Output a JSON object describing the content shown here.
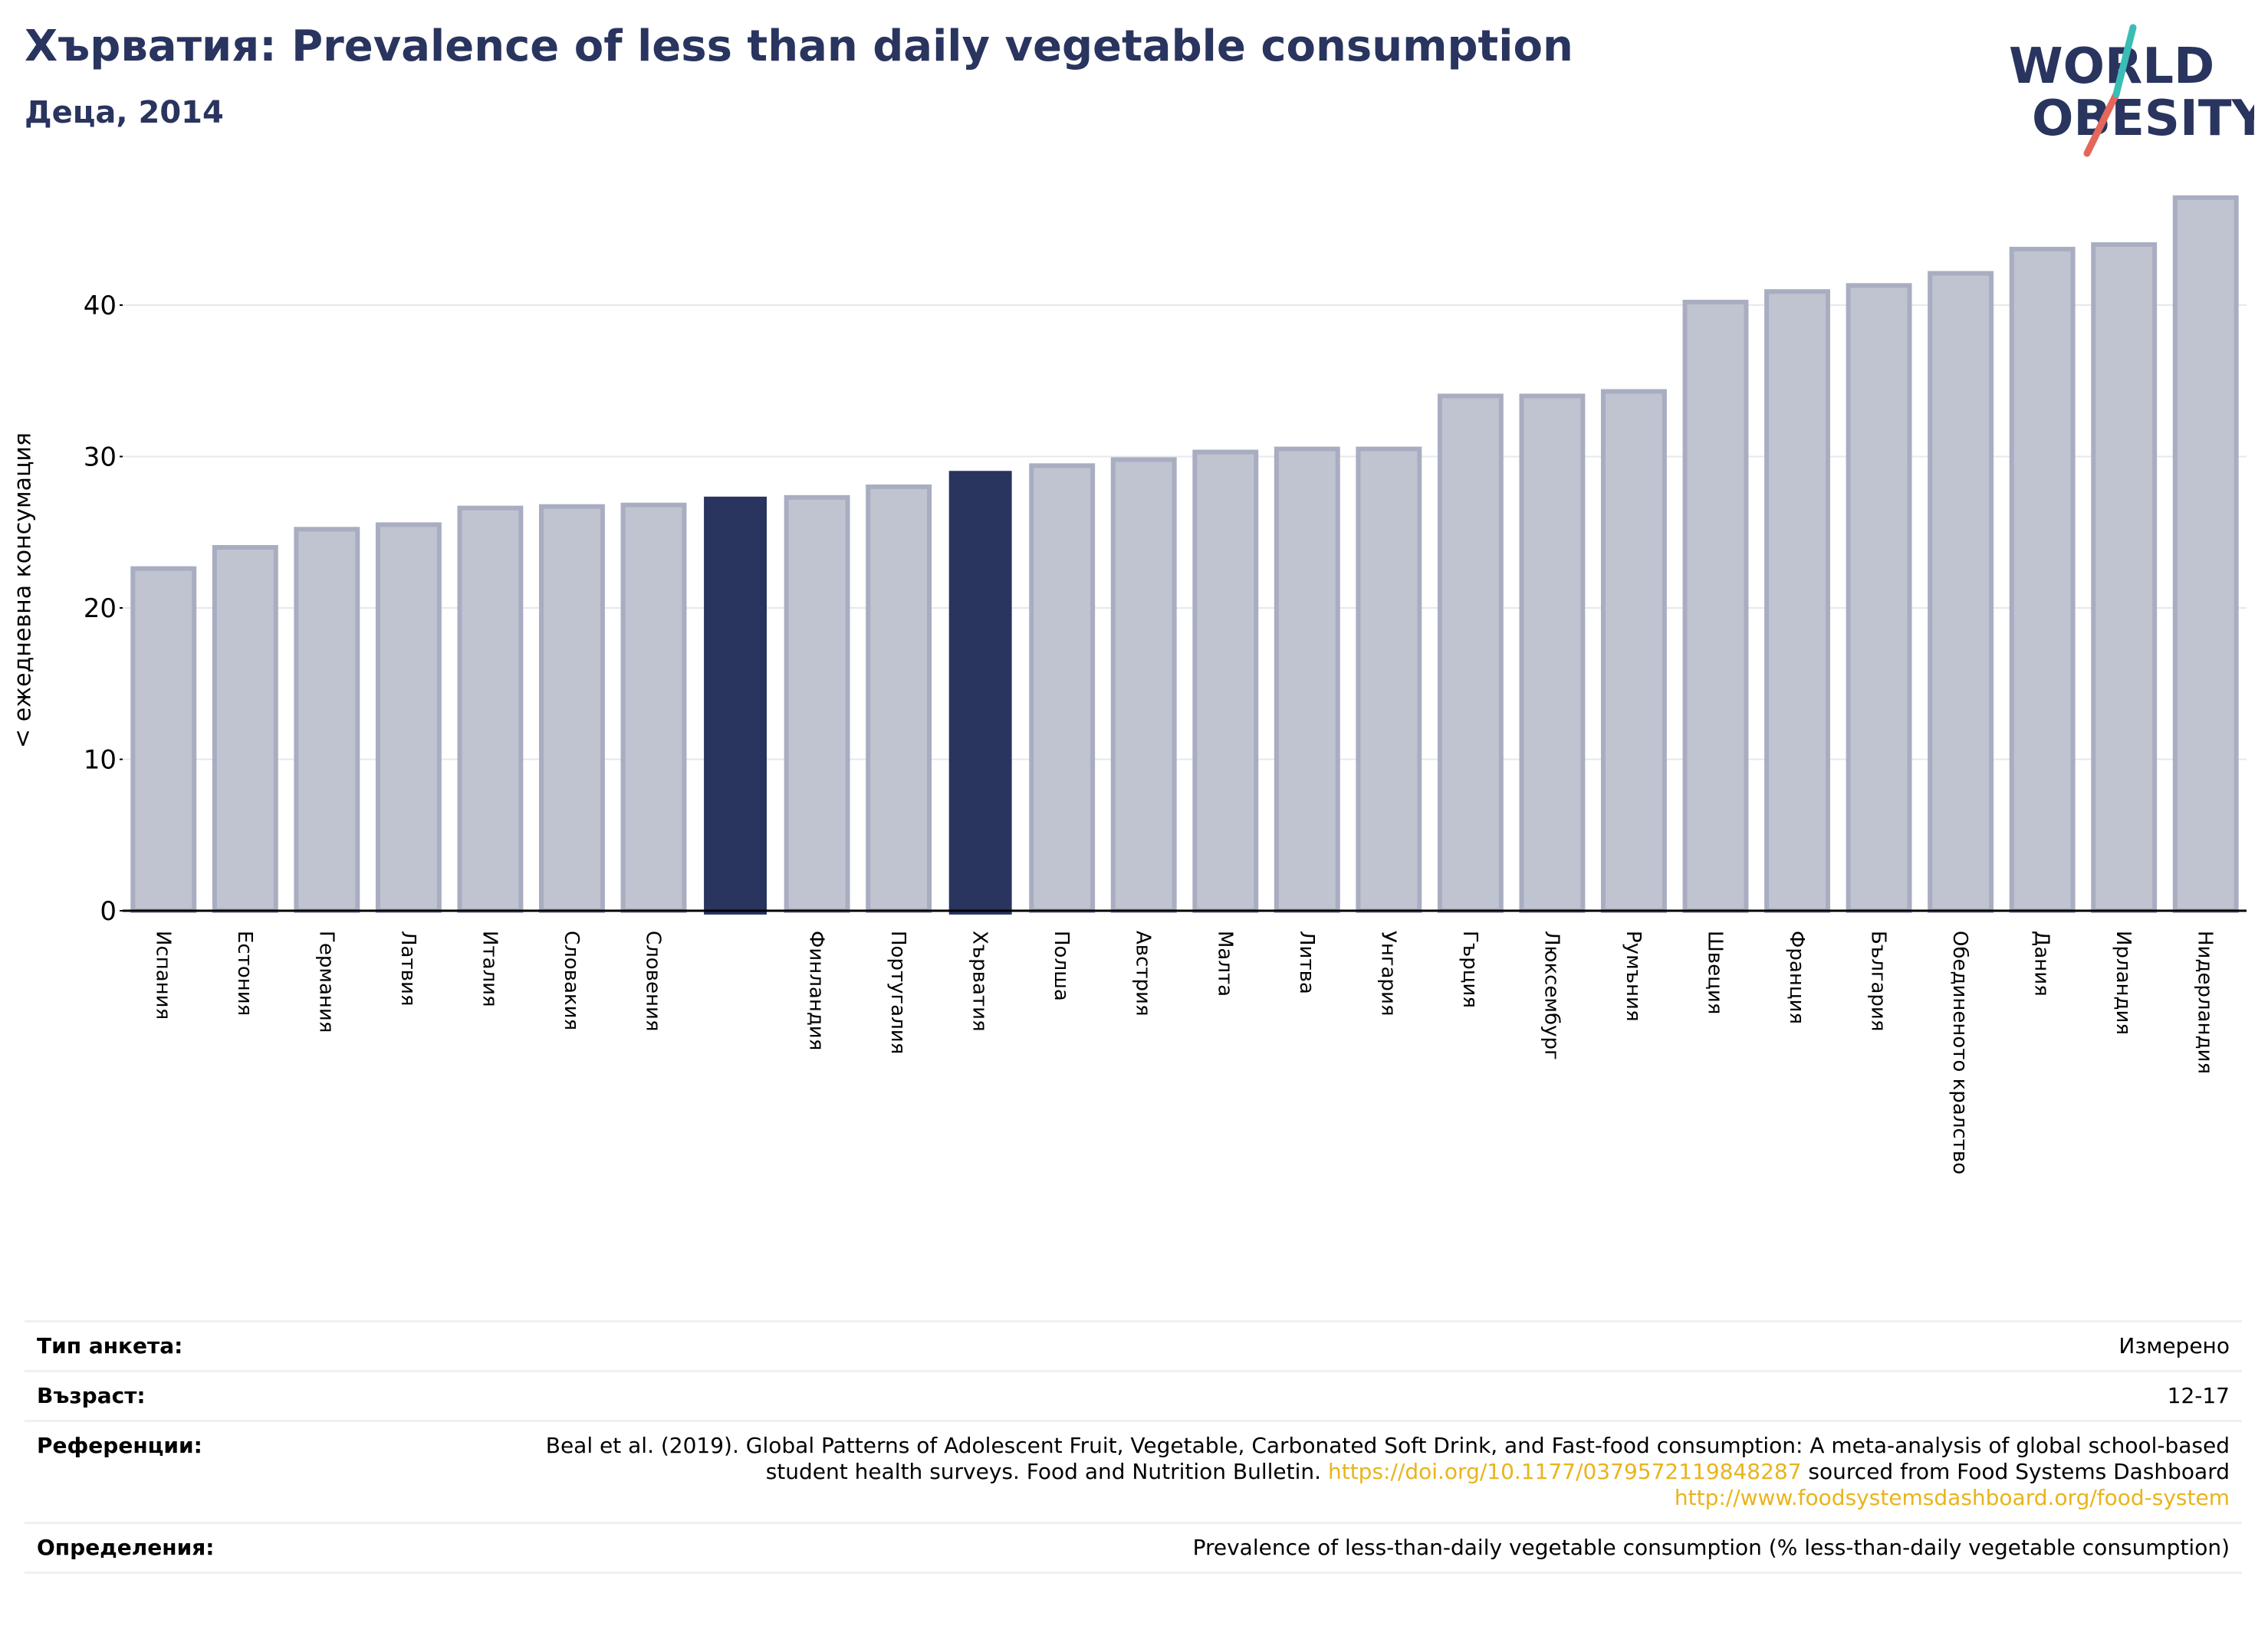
{
  "header": {
    "title": "Хърватия: Prevalence of less than daily vegetable consumption",
    "subtitle": "Деца, 2014",
    "logo_line1": "WORLD",
    "logo_line2": "OBESITY"
  },
  "chart_data": {
    "type": "bar",
    "ylabel": "< ежедневна консумация",
    "ylim": [
      0,
      48
    ],
    "yticks": [
      0,
      10,
      20,
      30,
      40
    ],
    "grid": true,
    "categories": [
      "Испания",
      "Естония",
      "Германия",
      "Латвия",
      "Италия",
      "Словакия",
      "Словения",
      "",
      "Финландия",
      "Португалия",
      "Хърватия",
      "Полша",
      "Австрия",
      "Малта",
      "Литва",
      "Унгария",
      "Гърция",
      "Люксембург",
      "Румъния",
      "Швеция",
      "Франция",
      "България",
      "Обединеното кралство",
      "Дания",
      "Ирландия",
      "Нидерландия"
    ],
    "values": [
      22.6,
      24.0,
      25.2,
      25.5,
      26.6,
      26.7,
      26.8,
      27.3,
      27.3,
      28.0,
      29.0,
      29.4,
      29.8,
      30.3,
      30.5,
      30.5,
      34.0,
      34.0,
      34.3,
      40.2,
      40.9,
      41.3,
      42.1,
      43.7,
      44.0,
      47.1
    ],
    "highlight": [
      7,
      10
    ],
    "colors": {
      "bar": "#c0c3d0",
      "bar_edge": "#a9adc1",
      "highlight": "#29345f",
      "grid": "#e6e8ee",
      "axis": "#000000"
    }
  },
  "meta": {
    "survey_type_label": "Тип анкета:",
    "survey_type_value": "Измерено",
    "age_label": "Възраст:",
    "age_value": "12-17",
    "references_label": "Референции:",
    "references_text_1": "Beal et al. (2019). Global Patterns of Adolescent Fruit, Vegetable, Carbonated Soft Drink, and Fast-food consumption: A meta-analysis of global school-based student health surveys. Food and Nutrition Bulletin. ",
    "references_link_1": "https://doi.org/10.1177/0379572119848287",
    "references_text_2": " sourced from Food Systems Dashboard ",
    "references_link_2": "http://www.foodsystemsdashboard.org/food-system",
    "definitions_label": "Определения:",
    "definitions_value": "Prevalence of less-than-daily vegetable consumption (% less-than-daily vegetable consumption)"
  }
}
